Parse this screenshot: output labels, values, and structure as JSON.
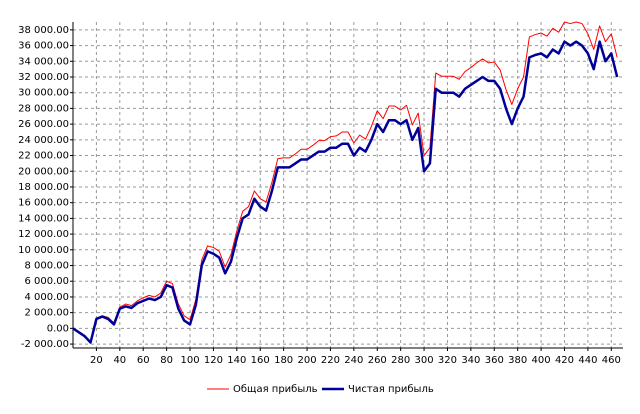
{
  "chart_data": {
    "type": "line",
    "x": [
      0,
      5,
      10,
      15,
      20,
      25,
      30,
      35,
      40,
      45,
      50,
      55,
      60,
      65,
      70,
      75,
      80,
      85,
      90,
      95,
      100,
      105,
      110,
      115,
      120,
      125,
      130,
      135,
      140,
      145,
      150,
      155,
      160,
      165,
      170,
      175,
      180,
      185,
      190,
      195,
      200,
      205,
      210,
      215,
      220,
      225,
      230,
      235,
      240,
      245,
      250,
      255,
      260,
      265,
      270,
      275,
      280,
      285,
      290,
      295,
      300,
      305,
      310,
      315,
      320,
      325,
      330,
      335,
      340,
      345,
      350,
      355,
      360,
      365,
      370,
      375,
      380,
      385,
      390,
      395,
      400,
      405,
      410,
      415,
      420,
      425,
      430,
      435,
      440,
      445,
      450,
      455,
      460,
      465
    ],
    "series": [
      {
        "name": "Общая прибыль",
        "color": "#ff0000",
        "values": [
          0,
          -500,
          -1000,
          -1700,
          1300,
          1600,
          1400,
          700,
          2700,
          3100,
          2900,
          3500,
          3900,
          4200,
          4000,
          4500,
          6000,
          5700,
          3100,
          1600,
          1100,
          3700,
          8700,
          10500,
          10300,
          9800,
          7800,
          9400,
          12400,
          14900,
          15500,
          17500,
          16500,
          16100,
          18600,
          21600,
          21700,
          21700,
          22200,
          22800,
          22800,
          23300,
          23900,
          23900,
          24400,
          24500,
          25000,
          25000,
          23600,
          24600,
          24100,
          25700,
          27700,
          26700,
          28300,
          28300,
          27800,
          28400,
          25900,
          27400,
          22000,
          23000,
          32500,
          32100,
          32100,
          32100,
          31700,
          32700,
          33200,
          33800,
          34300,
          33800,
          33900,
          32900,
          30400,
          28500,
          30500,
          32000,
          37100,
          37400,
          37600,
          37200,
          38200,
          37700,
          39000,
          38800,
          39000,
          38800,
          37500,
          35500,
          38500,
          36500,
          37500,
          34500
        ]
      },
      {
        "name": "Чистая прибыль",
        "color": "#000099",
        "values": [
          0,
          -500,
          -1000,
          -1800,
          1200,
          1500,
          1200,
          500,
          2500,
          2800,
          2600,
          3200,
          3500,
          3800,
          3600,
          4000,
          5500,
          5200,
          2500,
          1000,
          500,
          3000,
          8000,
          9800,
          9500,
          9000,
          7000,
          8500,
          11500,
          14000,
          14500,
          16500,
          15500,
          15000,
          17500,
          20500,
          20500,
          20500,
          21000,
          21500,
          21500,
          22000,
          22500,
          22500,
          23000,
          23000,
          23500,
          23500,
          22000,
          23000,
          22500,
          24000,
          26000,
          25000,
          26500,
          26500,
          26000,
          26500,
          24000,
          25500,
          20000,
          21000,
          30500,
          30000,
          30000,
          30000,
          29500,
          30500,
          31000,
          31500,
          32000,
          31500,
          31500,
          30500,
          28000,
          26000,
          28000,
          29500,
          34500,
          34800,
          35000,
          34500,
          35500,
          35000,
          36500,
          36000,
          36500,
          36000,
          35000,
          33000,
          36500,
          34000,
          35000,
          32000
        ]
      }
    ],
    "xlim": [
      0,
      470
    ],
    "xticks": [
      20,
      40,
      60,
      80,
      100,
      120,
      140,
      160,
      180,
      200,
      220,
      240,
      260,
      280,
      300,
      320,
      340,
      360,
      380,
      400,
      420,
      440,
      460
    ],
    "ylim": [
      -2500,
      39000
    ],
    "yticks": [
      {
        "value": -2000,
        "label": "-2 000.00"
      },
      {
        "value": 0,
        "label": "0.00"
      },
      {
        "value": 2000,
        "label": "2 000.00"
      },
      {
        "value": 4000,
        "label": "4 000.00"
      },
      {
        "value": 6000,
        "label": "6 000.00"
      },
      {
        "value": 8000,
        "label": "8 000.00"
      },
      {
        "value": 10000,
        "label": "10 000.00"
      },
      {
        "value": 12000,
        "label": "12 000.00"
      },
      {
        "value": 14000,
        "label": "14 000.00"
      },
      {
        "value": 16000,
        "label": "16 000.00"
      },
      {
        "value": 18000,
        "label": "18 000.00"
      },
      {
        "value": 20000,
        "label": "20 000.00"
      },
      {
        "value": 22000,
        "label": "22 000.00"
      },
      {
        "value": 24000,
        "label": "24 000.00"
      },
      {
        "value": 26000,
        "label": "26 000.00"
      },
      {
        "value": 28000,
        "label": "28 000.00"
      },
      {
        "value": 30000,
        "label": "30 000.00"
      },
      {
        "value": 32000,
        "label": "32 000.00"
      },
      {
        "value": 34000,
        "label": "34 000.00"
      },
      {
        "value": 36000,
        "label": "36 000.00"
      },
      {
        "value": 38000,
        "label": "38 000.00"
      }
    ],
    "grid": true
  }
}
